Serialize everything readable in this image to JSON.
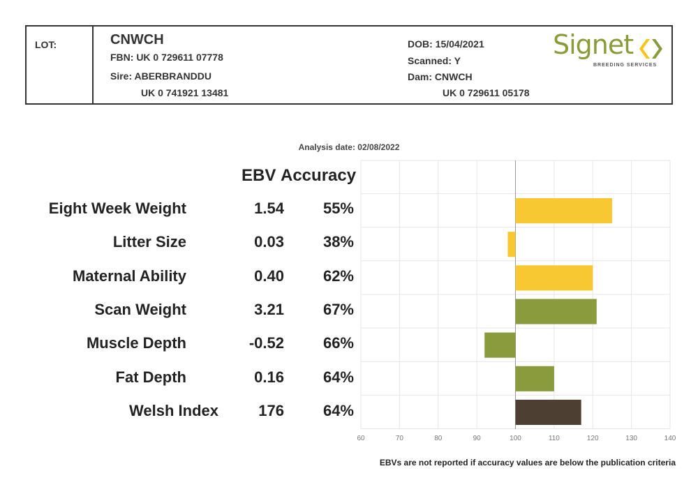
{
  "header": {
    "lot_label": "LOT:",
    "name": "CNWCH",
    "fbn": "FBN: UK 0 729611 07778",
    "sire": "Sire: ABERBRANDDU",
    "sire_id": "UK 0 741921 13481",
    "dob": "DOB: 15/04/2021",
    "scanned": "Scanned: Y",
    "dam": "Dam: CNWCH",
    "dam_id": "UK 0 729611 05178",
    "logo_text": "Signet",
    "logo_subtext": "BREEDING SERVICES"
  },
  "analysis_date": "Analysis date: 02/08/2022",
  "columns": {
    "ebv": "EBV",
    "accuracy": "Accuracy"
  },
  "traits": [
    {
      "label": "Eight Week Weight",
      "ebv": "1.54",
      "accuracy": "55%"
    },
    {
      "label": "Litter Size",
      "ebv": "0.03",
      "accuracy": "38%"
    },
    {
      "label": "Maternal Ability",
      "ebv": "0.40",
      "accuracy": "62%"
    },
    {
      "label": "Scan Weight",
      "ebv": "3.21",
      "accuracy": "67%"
    },
    {
      "label": "Muscle Depth",
      "ebv": "-0.52",
      "accuracy": "66%"
    },
    {
      "label": "Fat Depth",
      "ebv": "0.16",
      "accuracy": "64%"
    },
    {
      "label": "Welsh Index",
      "ebv": "176",
      "accuracy": "64%"
    }
  ],
  "footnote": "EBVs are not reported if accuracy values are below the publication criteria",
  "colors": {
    "maternal": "#f7c832",
    "terminal": "#8a9b3e",
    "index": "#4d4033",
    "grid": "#e6e6e6",
    "baseline": "#999999",
    "logo_green": "#8a9b3a",
    "logo_yellow": "#f5c518"
  },
  "chart_data": {
    "type": "bar",
    "orientation": "horizontal",
    "baseline": 100,
    "xlim": [
      60,
      140
    ],
    "xticks": [
      "60",
      "70",
      "80",
      "90",
      "100",
      "110",
      "120",
      "130",
      "140"
    ],
    "categories": [
      "Eight Week Weight",
      "Litter Size",
      "Maternal Ability",
      "Scan Weight",
      "Muscle Depth",
      "Fat Depth",
      "Welsh Index"
    ],
    "values": [
      125,
      98,
      120,
      121,
      92,
      110,
      117
    ],
    "bar_groups": [
      "maternal",
      "maternal",
      "maternal",
      "terminal",
      "terminal",
      "terminal",
      "index"
    ],
    "grid": true
  }
}
